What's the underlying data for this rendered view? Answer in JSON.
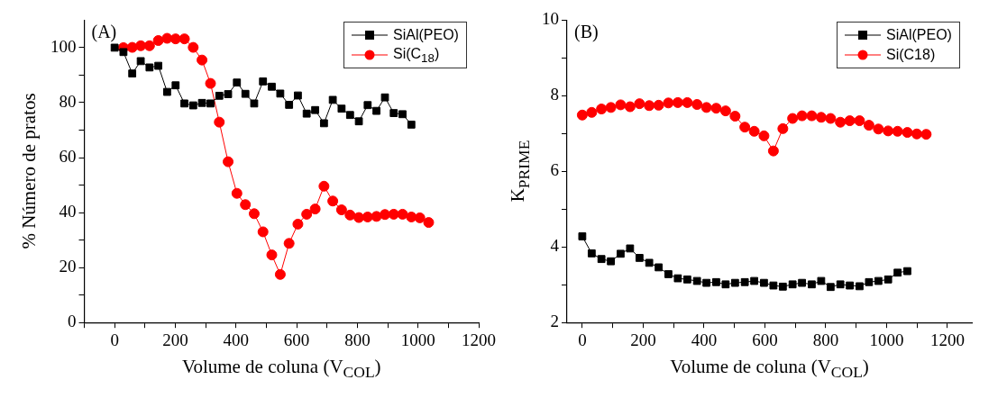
{
  "chart_data": [
    {
      "type": "line",
      "annotations": [
        "(A)"
      ],
      "xlabel": "Volume de coluna (V$_{COL}$)",
      "ylabel": "% Número de pratos",
      "xlim": [
        -100,
        1200
      ],
      "xticks": [
        {
          "value": -100,
          "label": null
        },
        0,
        {
          "value": 100,
          "label": null
        },
        200,
        {
          "value": 300,
          "label": null
        },
        400,
        {
          "value": 500,
          "label": null
        },
        600,
        {
          "value": 700,
          "label": null
        },
        800,
        {
          "value": 900,
          "label": null
        },
        1000,
        {
          "value": 1100,
          "label": null
        },
        1200
      ],
      "ylim": [
        0,
        110
      ],
      "yticks": [
        0,
        {
          "value": 10,
          "label": null
        },
        20,
        {
          "value": 30,
          "label": null
        },
        40,
        {
          "value": 50,
          "label": null
        },
        60,
        {
          "value": 70,
          "label": null
        },
        80,
        {
          "value": 90,
          "label": null
        },
        100
      ],
      "grid": false,
      "legend": "top right",
      "series": [
        {
          "name": "SiAl(PEO)",
          "color": "#000000",
          "marker": "square",
          "x": [
            0,
            29,
            58,
            86,
            115,
            144,
            173,
            201,
            230,
            259,
            288,
            316,
            345,
            374,
            403,
            431,
            460,
            489,
            518,
            546,
            575,
            604,
            633,
            661,
            690,
            719,
            748,
            776,
            805,
            834,
            863,
            891,
            920,
            949,
            978
          ],
          "values": [
            100,
            98.4,
            90.6,
            95.1,
            92.8,
            93.4,
            83.9,
            86.3,
            79.7,
            79.0,
            79.9,
            79.7,
            82.5,
            83.1,
            87.3,
            83.2,
            79.7,
            87.7,
            85.8,
            83.3,
            79.2,
            82.6,
            76.0,
            77.3,
            72.5,
            81.0,
            77.8,
            75.5,
            73.2,
            79.1,
            77.0,
            81.9,
            76.2,
            75.8,
            72.0
          ]
        },
        {
          "name": "Si(C$_{18}$)",
          "color": "#ff0000",
          "marker": "circle",
          "x": [
            29,
            58,
            86,
            115,
            144,
            173,
            201,
            230,
            259,
            288,
            316,
            345,
            374,
            403,
            431,
            460,
            489,
            518,
            546,
            575,
            604,
            633,
            661,
            690,
            719,
            748,
            776,
            805,
            834,
            863,
            891,
            920,
            949,
            978,
            1006,
            1035
          ],
          "values": [
            100,
            100.1,
            100.7,
            100.7,
            102.6,
            103.4,
            103.2,
            103.2,
            100.1,
            95.5,
            87.0,
            72.9,
            58.5,
            47.0,
            42.9,
            39.6,
            33.0,
            24.6,
            17.5,
            28.8,
            35.8,
            39.4,
            41.3,
            49.6,
            44.2,
            41.0,
            39.1,
            38.2,
            38.4,
            38.6,
            39.3,
            39.4,
            39.4,
            38.4,
            38.1,
            36.4
          ]
        }
      ]
    },
    {
      "type": "line",
      "annotations": [
        "(B)"
      ],
      "xlabel": "Volume de coluna (V$_{COL}$)",
      "ylabel": "K$_{PRIME}$",
      "xlim": [
        -50,
        1280
      ],
      "xticks": [
        0,
        {
          "value": 100,
          "label": null
        },
        200,
        {
          "value": 300,
          "label": null
        },
        400,
        {
          "value": 500,
          "label": null
        },
        600,
        {
          "value": 700,
          "label": null
        },
        800,
        {
          "value": 900,
          "label": null
        },
        1000,
        {
          "value": 1100,
          "label": null
        },
        1200
      ],
      "ylim": [
        2,
        10
      ],
      "yticks": [
        2,
        {
          "value": 3,
          "label": null
        },
        4,
        {
          "value": 5,
          "label": null
        },
        6,
        {
          "value": 7,
          "label": null
        },
        8,
        {
          "value": 9,
          "label": null
        },
        10
      ],
      "grid": false,
      "legend": "top right",
      "series": [
        {
          "name": "SiAl(PEO)",
          "color": "#000000",
          "marker": "square",
          "x": [
            0,
            31,
            63,
            94,
            126,
            157,
            188,
            220,
            251,
            283,
            314,
            345,
            377,
            408,
            440,
            471,
            502,
            534,
            565,
            597,
            628,
            659,
            691,
            722,
            754,
            785,
            816,
            848,
            879,
            911,
            942,
            973,
            1005,
            1036,
            1068
          ],
          "values": [
            4.28,
            3.83,
            3.68,
            3.62,
            3.82,
            3.96,
            3.71,
            3.58,
            3.46,
            3.28,
            3.17,
            3.14,
            3.1,
            3.05,
            3.07,
            3.01,
            3.05,
            3.07,
            3.1,
            3.05,
            2.98,
            2.95,
            3.01,
            3.05,
            3.01,
            3.1,
            2.94,
            3.01,
            2.98,
            2.96,
            3.07,
            3.1,
            3.14,
            3.32,
            3.36
          ]
        },
        {
          "name": "Si(C18)",
          "color": "#ff0000",
          "marker": "circle",
          "x": [
            0,
            31,
            63,
            94,
            126,
            157,
            188,
            220,
            251,
            283,
            314,
            345,
            377,
            408,
            440,
            471,
            502,
            534,
            565,
            597,
            628,
            659,
            691,
            722,
            754,
            785,
            816,
            848,
            879,
            911,
            942,
            973,
            1005,
            1036,
            1068,
            1099,
            1130
          ],
          "values": [
            7.49,
            7.56,
            7.65,
            7.69,
            7.76,
            7.71,
            7.79,
            7.74,
            7.75,
            7.81,
            7.82,
            7.82,
            7.77,
            7.69,
            7.67,
            7.6,
            7.46,
            7.17,
            7.06,
            6.94,
            6.54,
            7.13,
            7.4,
            7.47,
            7.47,
            7.43,
            7.4,
            7.3,
            7.34,
            7.34,
            7.22,
            7.12,
            7.07,
            7.06,
            7.03,
            6.99,
            6.98
          ]
        }
      ]
    }
  ]
}
